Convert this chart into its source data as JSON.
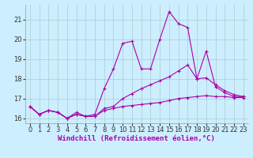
{
  "xlabel": "Windchill (Refroidissement éolien,°C)",
  "background_color": "#cceeff",
  "line_color": "#aa00aa",
  "grid_color": "#aacccc",
  "x": [
    0,
    1,
    2,
    3,
    4,
    5,
    6,
    7,
    8,
    9,
    10,
    11,
    12,
    13,
    14,
    15,
    16,
    17,
    18,
    19,
    20,
    21,
    22,
    23
  ],
  "line1": [
    16.6,
    16.2,
    16.4,
    16.3,
    16.0,
    16.2,
    16.1,
    16.1,
    16.4,
    16.5,
    16.6,
    16.65,
    16.7,
    16.75,
    16.8,
    16.9,
    17.0,
    17.05,
    17.1,
    17.15,
    17.1,
    17.1,
    17.05,
    17.05
  ],
  "line2": [
    16.6,
    16.2,
    16.4,
    16.3,
    16.0,
    16.3,
    16.1,
    16.2,
    17.5,
    18.5,
    19.8,
    19.9,
    18.5,
    18.5,
    20.0,
    21.4,
    20.8,
    20.6,
    18.0,
    19.4,
    17.6,
    17.3,
    17.1,
    17.1
  ],
  "line3": [
    16.6,
    16.2,
    16.4,
    16.3,
    16.0,
    16.2,
    16.1,
    16.1,
    16.5,
    16.6,
    17.0,
    17.25,
    17.5,
    17.7,
    17.9,
    18.1,
    18.4,
    18.7,
    18.0,
    18.05,
    17.7,
    17.4,
    17.2,
    17.1
  ],
  "ylim": [
    15.75,
    21.75
  ],
  "yticks": [
    16,
    17,
    18,
    19,
    20,
    21
  ],
  "xticks": [
    0,
    1,
    2,
    3,
    4,
    5,
    6,
    7,
    8,
    9,
    10,
    11,
    12,
    13,
    14,
    15,
    16,
    17,
    18,
    19,
    20,
    21,
    22,
    23
  ],
  "marker": "+",
  "marker_size": 3,
  "line_width": 0.8,
  "xlabel_fontsize": 6.5,
  "tick_fontsize": 6,
  "fig_width": 3.2,
  "fig_height": 2.0,
  "dpi": 100
}
